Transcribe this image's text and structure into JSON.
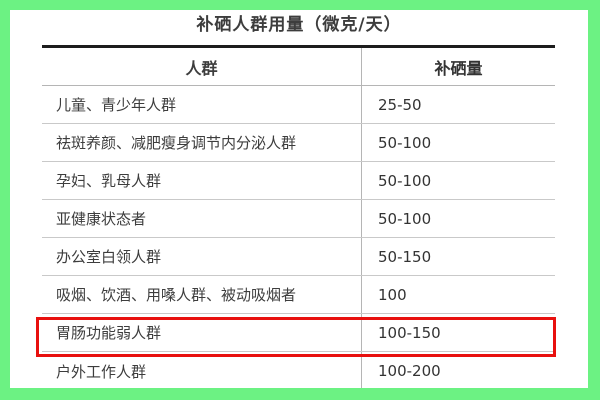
{
  "frame": {
    "color": "#6cf283"
  },
  "annotation": {
    "highlight_color": "#e8100e",
    "highlighted_row_index": 6,
    "highlighted_row_label": "胃肠功能弱人群"
  },
  "chart_data": {
    "type": "table",
    "title": "补硒人群用量（微克/天）",
    "columns": [
      "人群",
      "补硒量"
    ],
    "rows": [
      [
        "儿童、青少年人群",
        "25-50"
      ],
      [
        "祛斑养颜、减肥瘦身调节内分泌人群",
        "50-100"
      ],
      [
        "孕妇、乳母人群",
        "50-100"
      ],
      [
        "亚健康状态者",
        "50-100"
      ],
      [
        "办公室白领人群",
        "50-150"
      ],
      [
        "吸烟、饮酒、用嗓人群、被动吸烟者",
        "100"
      ],
      [
        "胃肠功能弱人群",
        "100-150"
      ],
      [
        "户外工作人群",
        "100-200"
      ]
    ]
  }
}
